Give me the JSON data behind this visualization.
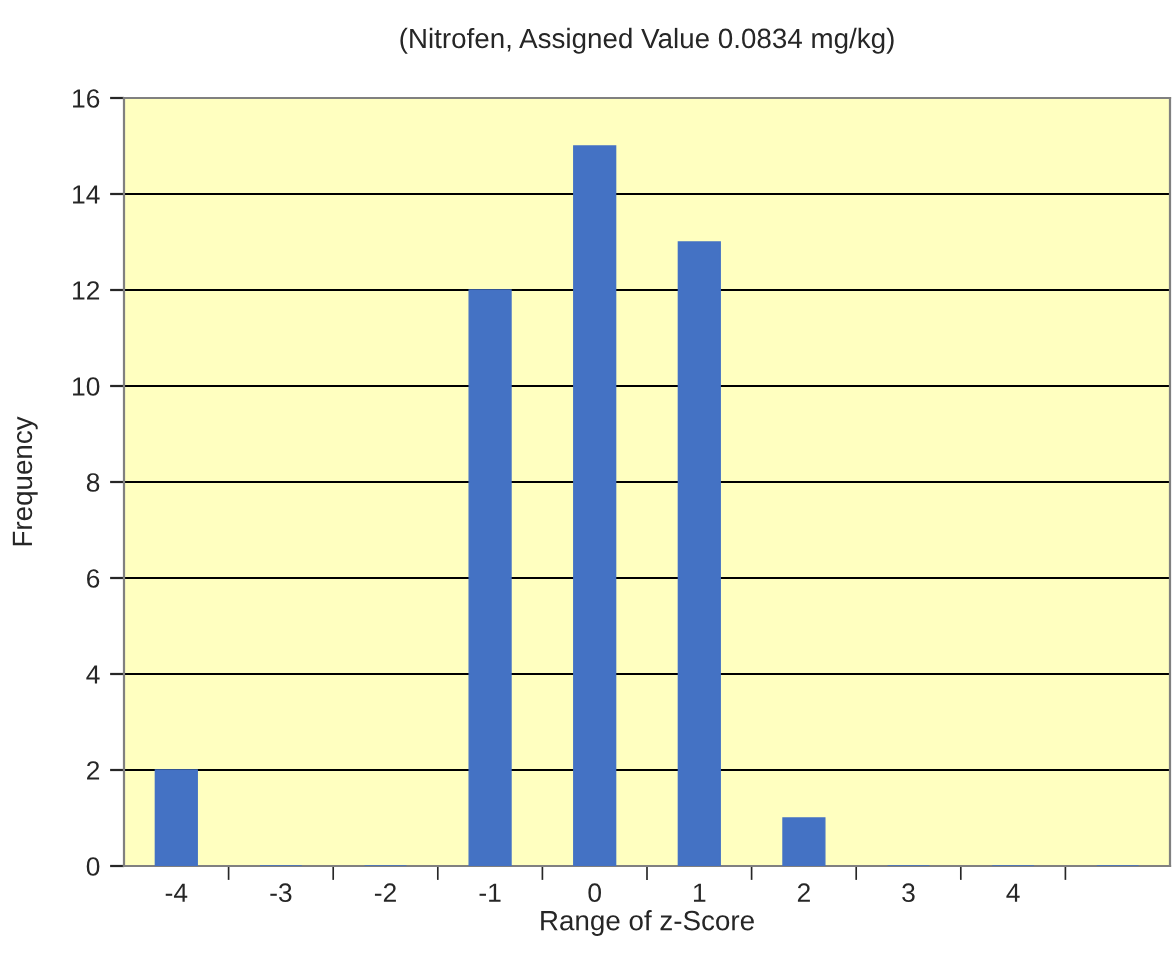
{
  "chart_data": {
    "type": "bar",
    "title": "(Nitrofen, Assigned Value 0.0834 mg/kg)",
    "xlabel": "Range of z-Score",
    "ylabel": "Frequency",
    "categories": [
      "-4",
      "-3",
      "-2",
      "-1",
      "0",
      "1",
      "2",
      "3",
      "4",
      null
    ],
    "values": [
      2,
      0,
      0,
      12,
      15,
      13,
      1,
      0,
      0,
      0
    ],
    "color": "#4472c4",
    "ylim": [
      0,
      16
    ],
    "yticks": [
      0,
      2,
      4,
      6,
      8,
      10,
      12,
      14,
      16
    ],
    "grid": "y"
  }
}
